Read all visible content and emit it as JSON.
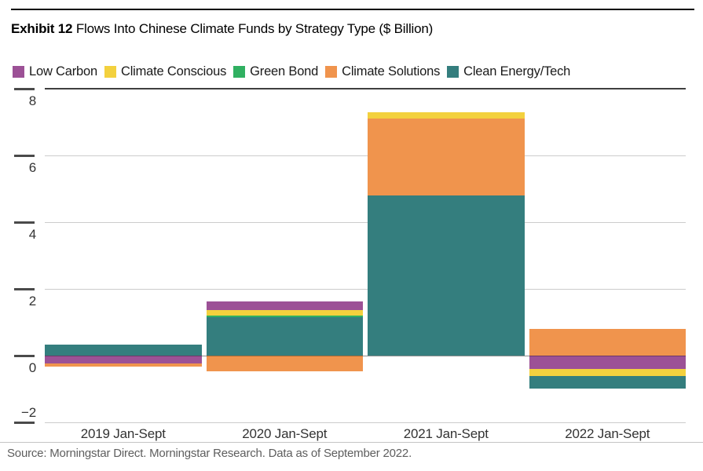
{
  "exhibit": {
    "label": "Exhibit 12",
    "title": "Flows Into Chinese Climate Funds by Strategy Type ($ Billion)"
  },
  "source_line": "Source: Morningstar Direct. Morningstar Research. Data as of September 2022.",
  "chart_data": {
    "type": "bar",
    "stacked": true,
    "title": "Flows Into Chinese Climate Funds by Strategy Type ($ Billion)",
    "xlabel": "",
    "ylabel": "$ Billion",
    "ylim": [
      -2,
      8
    ],
    "yticks": [
      8,
      6,
      4,
      2,
      0,
      -2
    ],
    "grid": true,
    "legend_position": "top",
    "categories": [
      "2019 Jan-Sept",
      "2020 Jan-Sept",
      "2021 Jan-Sept",
      "2022 Jan-Sept"
    ],
    "series": [
      {
        "name": "Low Carbon",
        "color": "#9C5196",
        "values": [
          -0.22,
          0.25,
          0.0,
          -0.4
        ]
      },
      {
        "name": "Climate Conscious",
        "color": "#F3D13E",
        "values": [
          0.0,
          0.17,
          0.2,
          -0.2
        ]
      },
      {
        "name": "Green Bond",
        "color": "#30B061",
        "values": [
          0.0,
          0.06,
          0.0,
          0.0
        ]
      },
      {
        "name": "Climate Solutions",
        "color": "#F0944D",
        "values": [
          -0.11,
          -0.47,
          2.3,
          0.82
        ]
      },
      {
        "name": "Clean Energy/Tech",
        "color": "#347E7E",
        "values": [
          0.35,
          1.15,
          4.8,
          -0.38
        ]
      }
    ]
  }
}
